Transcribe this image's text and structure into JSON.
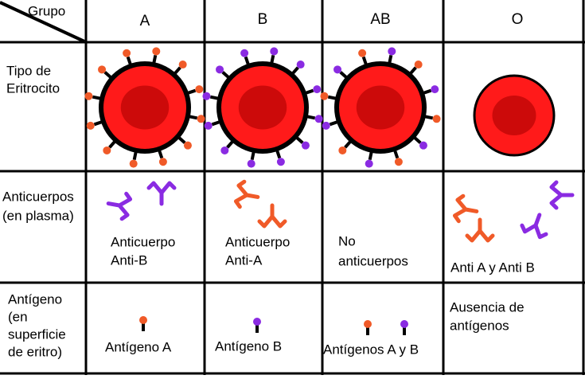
{
  "header": {
    "corner": "Grupo",
    "columns": [
      "A",
      "B",
      "AB",
      "O"
    ]
  },
  "rows": [
    {
      "label_lines": [
        "Tipo de",
        "Eritrocito"
      ]
    },
    {
      "label_lines": [
        "Anticuerpos",
        "(en plasma)"
      ],
      "cells": [
        [
          "Anticuerpo",
          "Anti-B"
        ],
        [
          "Anticuerpo",
          "Anti-A"
        ],
        [
          "No",
          "anticuerpos"
        ],
        [
          "Anti A y Anti B"
        ]
      ]
    },
    {
      "label_lines": [
        "Antígeno",
        "(en",
        "superficie",
        "de eritro)"
      ],
      "cells": [
        [
          "Antígeno A"
        ],
        [
          "Antígeno B"
        ],
        [
          "Antígenos A y B"
        ],
        [
          "Ausencia de",
          "antígenos"
        ]
      ]
    }
  ]
}
